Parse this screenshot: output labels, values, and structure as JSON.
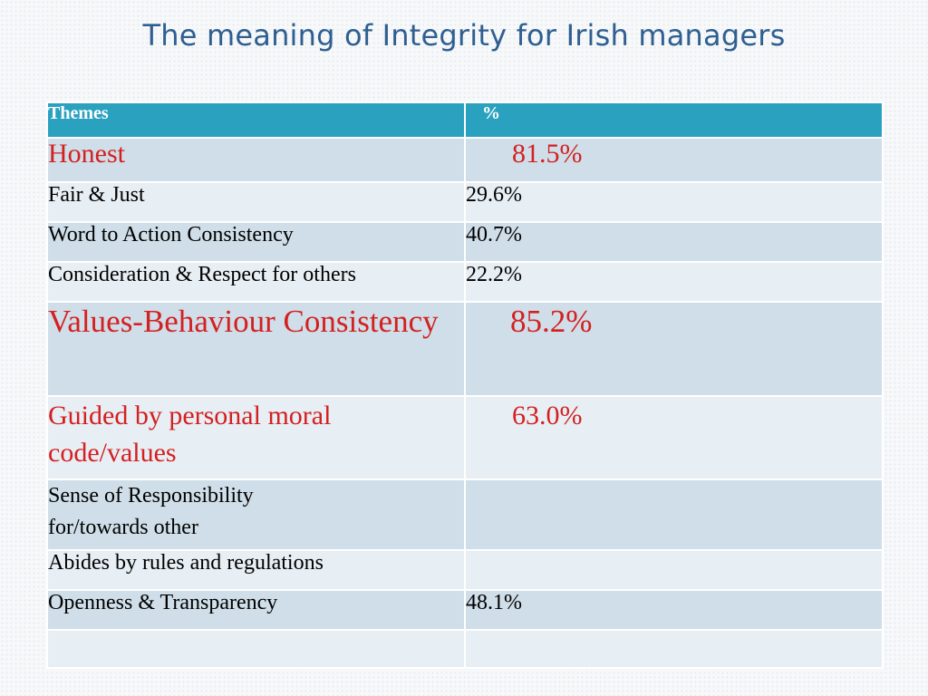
{
  "slide": {
    "title": "The meaning of Integrity for Irish managers"
  },
  "table": {
    "headers": [
      "Themes",
      "%"
    ],
    "rows": [
      {
        "theme": "Honest",
        "percent": "81.5%",
        "highlighted": true
      },
      {
        "theme": "Fair & Just",
        "percent": "29.6%",
        "highlighted": false
      },
      {
        "theme": "Word to Action Consistency",
        "percent": "40.7%",
        "highlighted": false
      },
      {
        "theme": "Consideration & Respect for others",
        "percent": "22.2%",
        "highlighted": false
      },
      {
        "theme": "Values-Behaviour Consistency",
        "percent": "85.2%",
        "highlighted": true
      },
      {
        "theme": "Guided by personal moral code/values",
        "percent": "63.0%",
        "highlighted": true
      },
      {
        "theme": "Sense of Responsibility for/towards other",
        "percent": "",
        "highlighted": false
      },
      {
        "theme": "Abides by rules and regulations",
        "percent": "",
        "highlighted": false
      },
      {
        "theme": "Openness & Transparency",
        "percent": "48.1%",
        "highlighted": false
      },
      {
        "theme": "",
        "percent": "",
        "highlighted": false
      }
    ]
  },
  "colors": {
    "title": "#2f5f91",
    "header_bg": "#2ba1c0",
    "row_dark": "#cfdee8",
    "row_light": "#e7eef4",
    "highlight_text": "#d42020"
  }
}
